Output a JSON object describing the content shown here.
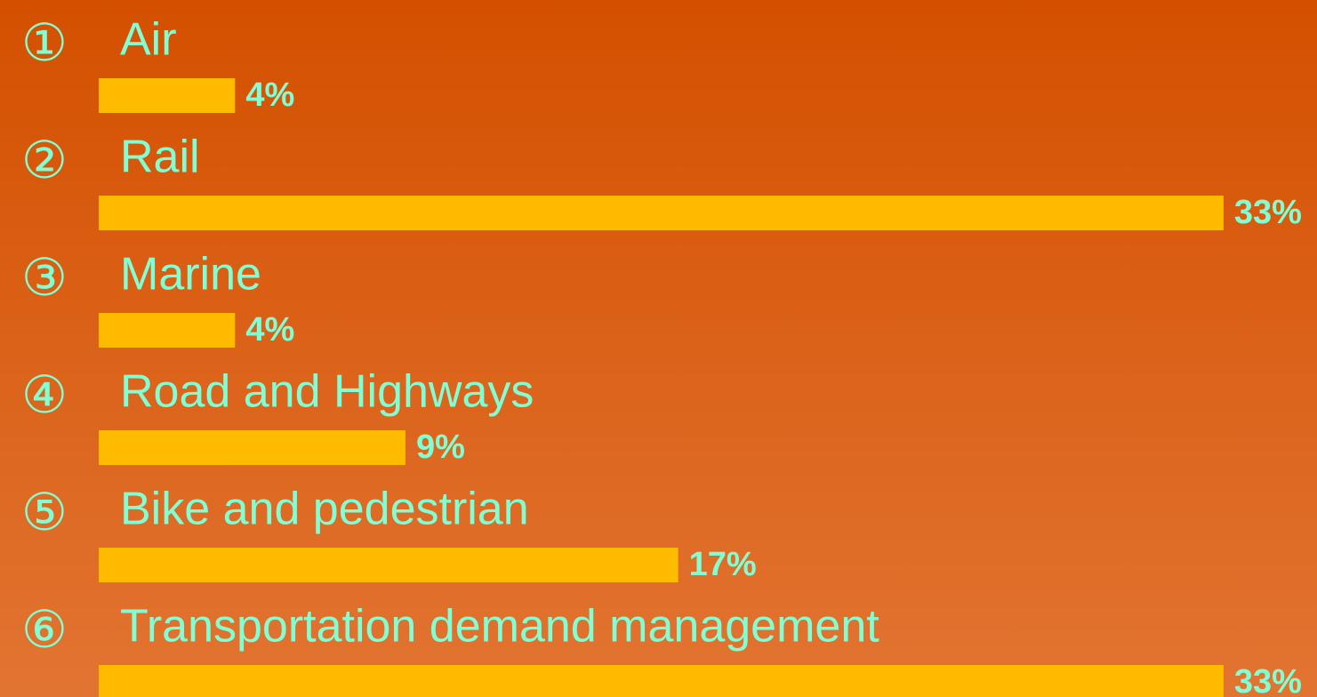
{
  "chart_data": {
    "type": "bar",
    "markers": [
      "①",
      "②",
      "③",
      "④",
      "⑤",
      "⑥"
    ],
    "categories": [
      "Air",
      "Rail",
      "Marine",
      "Road and Highways",
      "Bike and pedestrian",
      "Transportation demand management"
    ],
    "values": [
      4,
      33,
      4,
      9,
      17,
      33
    ],
    "value_labels": [
      "4%",
      "33%",
      "4%",
      "9%",
      "17%",
      "33%"
    ],
    "color": "#ffbb00"
  }
}
